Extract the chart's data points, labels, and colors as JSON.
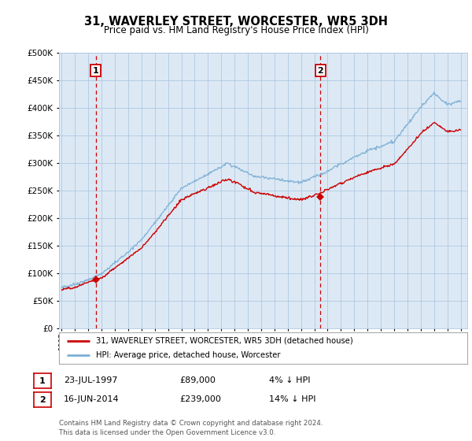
{
  "title": "31, WAVERLEY STREET, WORCESTER, WR5 3DH",
  "subtitle": "Price paid vs. HM Land Registry's House Price Index (HPI)",
  "legend_line1": "31, WAVERLEY STREET, WORCESTER, WR5 3DH (detached house)",
  "legend_line2": "HPI: Average price, detached house, Worcester",
  "annotation1_date": "23-JUL-1997",
  "annotation1_price": "£89,000",
  "annotation1_hpi": "4% ↓ HPI",
  "annotation2_date": "16-JUN-2014",
  "annotation2_price": "£239,000",
  "annotation2_hpi": "14% ↓ HPI",
  "footer": "Contains HM Land Registry data © Crown copyright and database right 2024.\nThis data is licensed under the Open Government Licence v3.0.",
  "price_color": "#cc0000",
  "hpi_color": "#7bafd4",
  "vline_color": "#cc0000",
  "ylim_min": 0,
  "ylim_max": 500000,
  "sale1_year": 1997.56,
  "sale1_price": 89000,
  "sale2_year": 2014.46,
  "sale2_price": 239000,
  "bg_color": "#ffffff",
  "plot_bg_color": "#dce9f5",
  "grid_color": "#b0c8e0",
  "annotation_box_color": "#cc0000"
}
